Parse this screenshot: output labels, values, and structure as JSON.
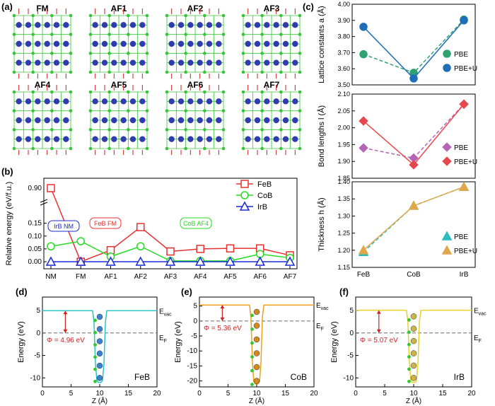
{
  "panels": {
    "a": {
      "label": "(a)",
      "configs": [
        "FM",
        "AF1",
        "AF2",
        "AF3",
        "AF4",
        "AF5",
        "AF6",
        "AF7"
      ]
    },
    "b": {
      "label": "(b)"
    },
    "c": {
      "label": "(c)"
    },
    "d": {
      "label": "(d)"
    },
    "e": {
      "label": "(e)"
    },
    "f": {
      "label": "(f)"
    }
  },
  "colors": {
    "feb": "#e8312f",
    "cob": "#22dd22",
    "irb": "#1a2bd6",
    "pbe_a": "#2fa36f",
    "pbeu_a": "#1f6fb8",
    "pbe_l": "#b565b5",
    "pbeu_l": "#e8474d",
    "pbe_h": "#2bbcbc",
    "pbeu_h": "#e0a84a",
    "atom_big": "#2f3cad",
    "atom_small": "#36c536",
    "spin": "#cc2222"
  },
  "chart_data": [
    {
      "id": "b",
      "type": "line",
      "ylabel": "Relative energy (eV/f.u.)",
      "categories": [
        "NM",
        "FM",
        "AF1",
        "AF2",
        "AF3",
        "AF4",
        "AF5",
        "AF6",
        "AF7"
      ],
      "yticks": [
        "0.00",
        "0.05",
        "0.10",
        "0.15",
        "0.90"
      ],
      "series": [
        {
          "name": "FeB",
          "marker": "square",
          "values": [
            0.88,
            0.0,
            0.045,
            0.135,
            0.04,
            0.05,
            0.052,
            0.052,
            0.025
          ]
        },
        {
          "name": "CoB",
          "marker": "circle",
          "values": [
            0.06,
            0.08,
            0.02,
            0.06,
            0.003,
            0.003,
            0.003,
            0.03,
            0.015
          ]
        },
        {
          "name": "IrB",
          "marker": "triangle",
          "values": [
            0.0,
            0.0,
            0.0,
            0.0,
            0.0,
            0.0,
            0.0,
            0.0,
            0.0
          ]
        }
      ],
      "annotations": [
        "IrB NM",
        "FeB FM",
        "CoB AF4"
      ]
    },
    {
      "id": "c-top",
      "type": "line",
      "ylabel": "Lattice constants a (Å)",
      "categories": [
        "FeB",
        "CoB",
        "IrB"
      ],
      "ylim": [
        3.5,
        4.0
      ],
      "yticks": [
        "3.50",
        "3.60",
        "3.70",
        "3.80",
        "3.90",
        "4.00"
      ],
      "series": [
        {
          "name": "PBE",
          "values": [
            3.69,
            3.575,
            3.905
          ]
        },
        {
          "name": "PBE+U",
          "values": [
            3.86,
            3.54,
            3.9
          ]
        }
      ]
    },
    {
      "id": "c-mid",
      "type": "line",
      "ylabel": "Bond lengths l (Å)",
      "categories": [
        "FeB",
        "CoB",
        "IrB"
      ],
      "ylim": [
        1.85,
        2.1
      ],
      "yticks": [
        "1.85",
        "1.90",
        "1.95",
        "2.00",
        "2.05",
        "2.10"
      ],
      "series": [
        {
          "name": "PBE",
          "values": [
            1.94,
            1.91,
            2.07
          ]
        },
        {
          "name": "PBE+U",
          "values": [
            2.02,
            1.89,
            2.07
          ]
        }
      ]
    },
    {
      "id": "c-bot",
      "type": "line",
      "ylabel": "Thickness h (Å)",
      "categories": [
        "FeB",
        "CoB",
        "IrB"
      ],
      "ylim": [
        1.15,
        1.4
      ],
      "yticks": [
        "1.15",
        "1.20",
        "1.25",
        "1.30",
        "1.35",
        "1.40"
      ],
      "series": [
        {
          "name": "PBE",
          "values": [
            1.195,
            1.33,
            1.385
          ]
        },
        {
          "name": "PBE+U",
          "values": [
            1.2,
            1.33,
            1.385
          ]
        }
      ]
    },
    {
      "id": "d",
      "type": "line",
      "material": "FeB",
      "xlabel": "Z (Å)",
      "ylabel": "Energy (eV)",
      "xticks": [
        "0",
        "5",
        "10",
        "15",
        "20"
      ],
      "yticks": [
        "-10",
        "-5",
        "0",
        "5"
      ],
      "evac": 4.96,
      "phi": "Φ = 4.96 eV",
      "evac_label": "E",
      "evac_sub": "vac",
      "ef_label": "E",
      "ef_sub": "F",
      "ymin": -12,
      "ymax": 8
    },
    {
      "id": "e",
      "type": "line",
      "material": "CoB",
      "xlabel": "Z (Å)",
      "ylabel": "Energy (eV)",
      "xticks": [
        "0",
        "5",
        "10",
        "15",
        "20"
      ],
      "yticks": [
        "-20",
        "-15",
        "-10",
        "-5",
        "0",
        "5"
      ],
      "evac": 5.36,
      "phi": "Φ = 5.36 eV",
      "evac_label": "E",
      "evac_sub": "vac",
      "ef_label": "E",
      "ef_sub": "F",
      "ymin": -22,
      "ymax": 8
    },
    {
      "id": "f",
      "type": "line",
      "material": "IrB",
      "xlabel": "Z (Å)",
      "ylabel": "Energy (eV)",
      "xticks": [
        "0",
        "5",
        "10",
        "15",
        "20"
      ],
      "yticks": [
        "-10",
        "-5",
        "0",
        "5"
      ],
      "evac": 5.07,
      "phi": "Φ = 5.07 eV",
      "evac_label": "E",
      "evac_sub": "vac",
      "ef_label": "E",
      "ef_sub": "F",
      "ymin": -12,
      "ymax": 8
    }
  ],
  "legend": {
    "pbe": "PBE",
    "pbeu": "PBE+U"
  }
}
